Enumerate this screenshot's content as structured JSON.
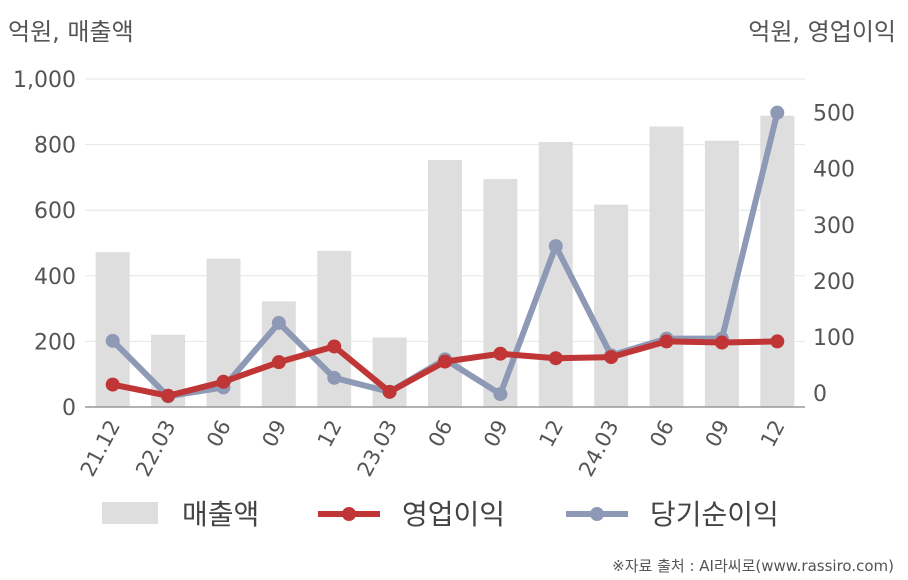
{
  "units": {
    "left": "억원, 매출액",
    "right": "억원, 영업이익"
  },
  "source": "※자료 출처 : AI라씨로(www.rassiro.com)",
  "colors": {
    "bar": "#dedede",
    "operating_profit": "#c03535",
    "net_income": "#8e9ab5",
    "axis": "#999999",
    "grid": "#e6e6e6"
  },
  "chart_data": {
    "type": "bar+line",
    "categories": [
      "21.12",
      "22.03",
      "06",
      "09",
      "12",
      "23.03",
      "06",
      "09",
      "12",
      "24.03",
      "06",
      "09",
      "12"
    ],
    "left_axis": {
      "min": 0,
      "max": 1000,
      "ticks": [
        "0",
        "200",
        "400",
        "600",
        "800",
        "1,000"
      ]
    },
    "right_axis": {
      "min": -25,
      "max": 560,
      "ticks": [
        "0",
        "100",
        "200",
        "300",
        "400",
        "500"
      ]
    },
    "series": [
      {
        "name": "매출액",
        "type": "bar",
        "axis": "left",
        "values": [
          472,
          220,
          452,
          322,
          476,
          212,
          753,
          695,
          808,
          617,
          855,
          812,
          888
        ]
      },
      {
        "name": "영업이익",
        "type": "line",
        "axis": "right",
        "values": [
          15,
          -5,
          20,
          55,
          83,
          2,
          56,
          70,
          62,
          64,
          92,
          90,
          92
        ]
      },
      {
        "name": "당기순이익",
        "type": "line",
        "axis": "right",
        "values": [
          93,
          -6,
          10,
          125,
          27,
          2,
          60,
          -2,
          262,
          67,
          97,
          97,
          500
        ]
      }
    ],
    "legend_position": "bottom",
    "grid": true
  }
}
